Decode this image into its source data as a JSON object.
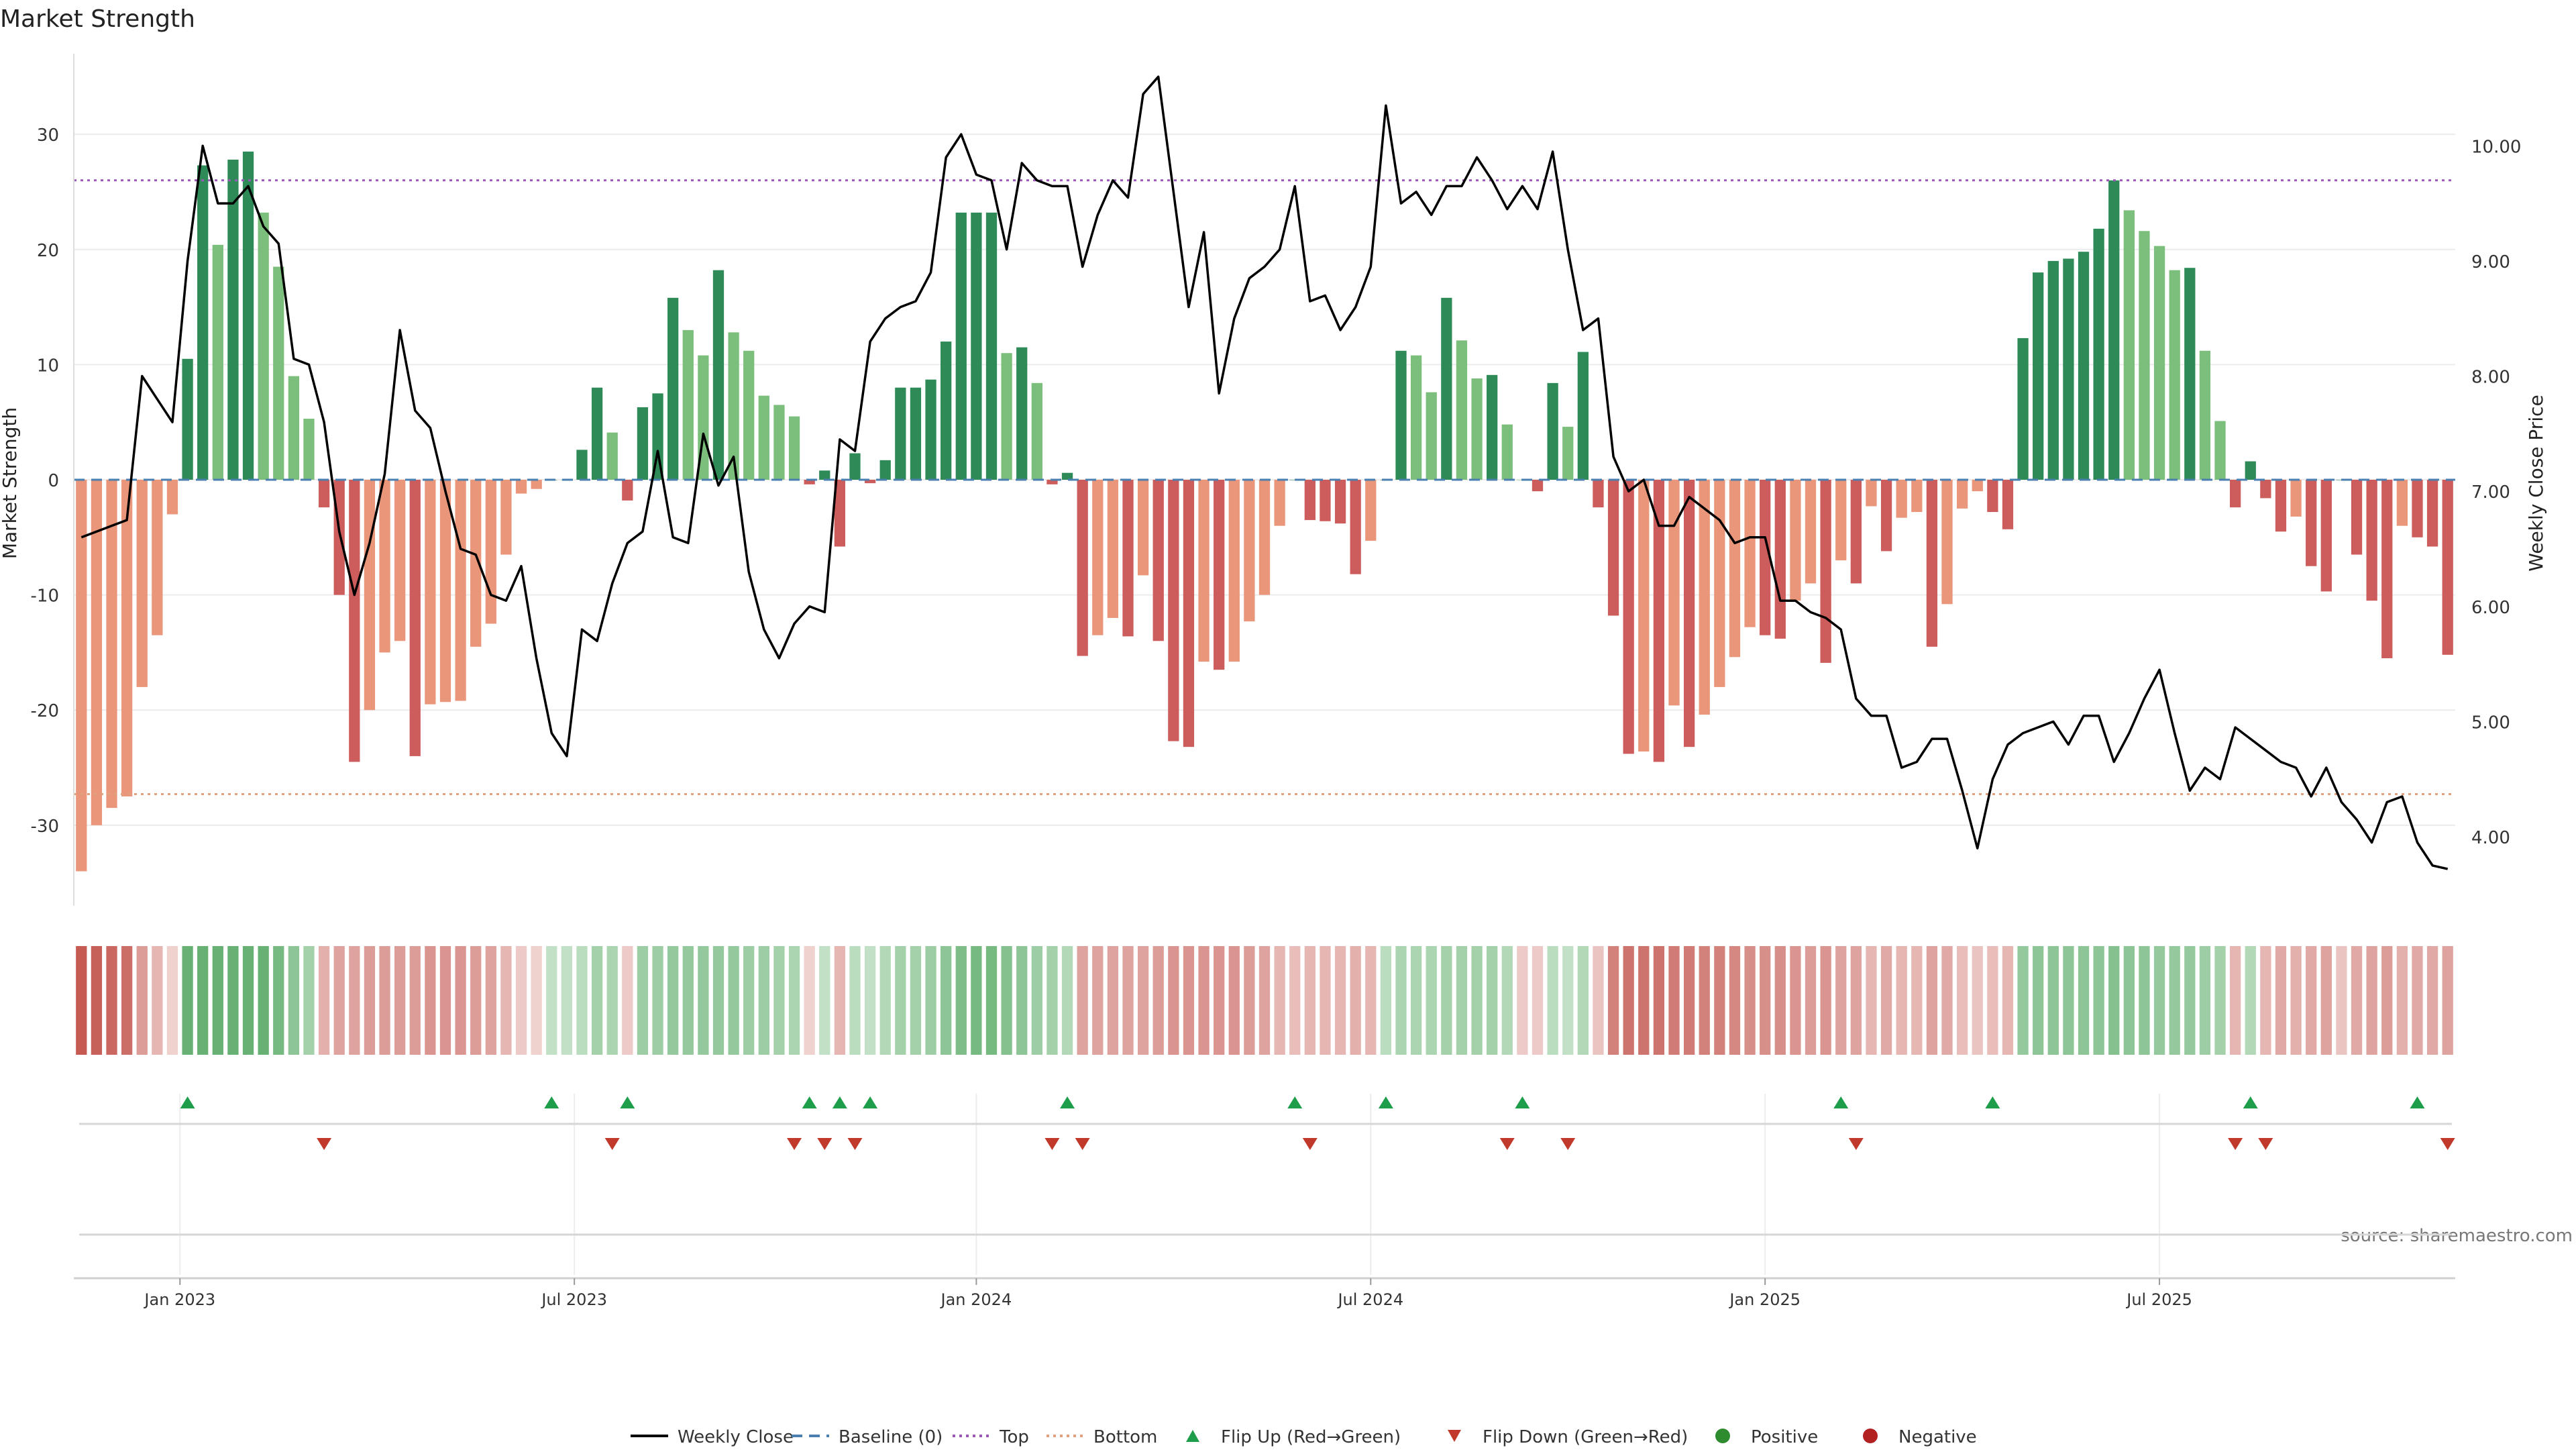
{
  "chart_data": {
    "type": "bar",
    "title": "Market Strength",
    "ylabel": "Market Strength",
    "y2label": "Weekly Close Price",
    "ylim": [
      -37,
      37
    ],
    "y2lim": [
      3.4,
      10.8
    ],
    "yticks": [
      -30,
      -20,
      -10,
      0,
      10,
      20,
      30
    ],
    "y2ticks": [
      "4.00",
      "5.00",
      "6.00",
      "7.00",
      "8.00",
      "9.00",
      "10.00"
    ],
    "y2tick_values": [
      4,
      5,
      6,
      7,
      8,
      9,
      10
    ],
    "xticks": [
      "Jan 2023",
      "Jul 2023",
      "Jan 2024",
      "Jul 2024",
      "Jan 2025",
      "Jul 2025"
    ],
    "xtick_weeks": [
      7,
      33,
      59.5,
      85.5,
      111.5,
      137.5
    ],
    "top_line": 26,
    "bottom_line": -27.3,
    "baseline": 0,
    "strength": [
      -34,
      -30,
      -28.5,
      -27.5,
      -18,
      -13.5,
      -3,
      10.5,
      27.3,
      20.4,
      27.8,
      28.5,
      23.2,
      18.5,
      9,
      5.3,
      -2.4,
      -10,
      -24.5,
      -20,
      -15,
      -14,
      -24,
      -19.5,
      -19.3,
      -19.2,
      -14.5,
      -12.5,
      -6.5,
      -1.2,
      -0.8,
      0,
      0,
      2.6,
      8,
      4.1,
      -1.8,
      6.3,
      7.5,
      15.8,
      13,
      10.8,
      18.2,
      12.8,
      11.2,
      7.3,
      6.5,
      5.5,
      -0.4,
      0.8,
      -5.8,
      2.3,
      -0.3,
      1.7,
      8,
      8,
      8.7,
      12,
      23.2,
      23.2,
      23.2,
      11,
      11.5,
      8.4,
      -0.4,
      0.6,
      -15.3,
      -13.5,
      -12,
      -13.6,
      -8.3,
      -14,
      -22.7,
      -23.2,
      -15.8,
      -16.5,
      -15.8,
      -12.3,
      -10,
      -4,
      0,
      -3.5,
      -3.6,
      -3.8,
      -8.2,
      -5.3,
      0,
      11.2,
      10.8,
      7.6,
      15.8,
      12.1,
      8.8,
      9.1,
      4.8,
      0,
      -1,
      8.4,
      4.6,
      11.1,
      -2.4,
      -11.8,
      -23.8,
      -23.6,
      -24.5,
      -19.6,
      -23.2,
      -20.4,
      -18,
      -15.4,
      -12.8,
      -13.5,
      -13.8,
      -10.5,
      -9,
      -15.9,
      -7,
      -9,
      -2.3,
      -6.2,
      -3.3,
      -2.8,
      -14.5,
      -10.8,
      -2.5,
      -1,
      -2.8,
      -4.3,
      12.3,
      18,
      19,
      19.2,
      19.8,
      21.8,
      26,
      23.4,
      21.6,
      20.3,
      18.2,
      18.4,
      11.2,
      5.1,
      -2.4,
      1.6,
      -1.6,
      -4.5,
      -3.2,
      -7.5,
      -9.7,
      0,
      -6.5,
      -10.5,
      -15.5,
      -4,
      -5,
      -5.8,
      -15.2
    ],
    "weekly_close": [
      6.6,
      6.65,
      6.7,
      6.75,
      8.0,
      7.8,
      7.6,
      9.0,
      10.0,
      9.5,
      9.5,
      9.65,
      9.3,
      9.15,
      8.15,
      8.1,
      7.6,
      6.65,
      6.1,
      6.55,
      7.15,
      8.4,
      7.7,
      7.55,
      7.0,
      6.5,
      6.45,
      6.1,
      6.05,
      6.35,
      5.55,
      4.9,
      4.7,
      5.8,
      5.7,
      6.2,
      6.55,
      6.65,
      7.35,
      6.6,
      6.55,
      7.5,
      7.05,
      7.3,
      6.3,
      5.8,
      5.55,
      5.85,
      6.0,
      5.95,
      7.45,
      7.35,
      8.3,
      8.5,
      8.6,
      8.65,
      8.9,
      9.9,
      10.1,
      9.75,
      9.7,
      9.1,
      9.85,
      9.7,
      9.65,
      9.65,
      8.95,
      9.4,
      9.7,
      9.55,
      10.45,
      10.6,
      9.6,
      8.6,
      9.25,
      7.85,
      8.5,
      8.85,
      8.95,
      9.1,
      9.65,
      8.65,
      8.7,
      8.4,
      8.6,
      8.95,
      10.35,
      9.5,
      9.6,
      9.4,
      9.65,
      9.65,
      9.9,
      9.7,
      9.45,
      9.65,
      9.45,
      9.95,
      9.1,
      8.4,
      8.5,
      7.3,
      7.0,
      7.1,
      6.7,
      6.7,
      6.95,
      6.85,
      6.75,
      6.55,
      6.6,
      6.6,
      6.05,
      6.05,
      5.95,
      5.9,
      5.8,
      5.2,
      5.05,
      5.05,
      4.6,
      4.65,
      4.85,
      4.85,
      4.4,
      3.9,
      4.5,
      4.8,
      4.9,
      4.95,
      5.0,
      4.8,
      5.05,
      5.05,
      4.65,
      4.9,
      5.2,
      5.45,
      4.9,
      4.4,
      4.6,
      4.5,
      4.95,
      4.85,
      4.75,
      4.65,
      4.6,
      4.35,
      4.6,
      4.3,
      4.15,
      3.95,
      4.3,
      4.35,
      3.95,
      3.75,
      3.72
    ],
    "heat_bands": [
      -1,
      -0.95,
      -0.9,
      -0.85,
      -0.5,
      -0.3,
      -0.1,
      0.85,
      0.85,
      0.85,
      0.85,
      0.85,
      0.85,
      0.75,
      0.6,
      0.45,
      -0.35,
      -0.45,
      -0.45,
      -0.5,
      -0.5,
      -0.5,
      -0.5,
      -0.55,
      -0.55,
      -0.55,
      -0.5,
      -0.45,
      -0.3,
      -0.15,
      -0.1,
      0.25,
      0.25,
      0.3,
      0.45,
      0.4,
      -0.15,
      0.5,
      0.5,
      0.55,
      0.55,
      0.55,
      0.55,
      0.55,
      0.5,
      0.5,
      0.45,
      0.4,
      -0.1,
      0.25,
      -0.3,
      0.3,
      0.25,
      0.35,
      0.45,
      0.45,
      0.5,
      0.6,
      0.7,
      0.75,
      0.75,
      0.65,
      0.6,
      0.5,
      0.45,
      0.35,
      -0.45,
      -0.45,
      -0.45,
      -0.45,
      -0.45,
      -0.5,
      -0.55,
      -0.55,
      -0.55,
      -0.55,
      -0.55,
      -0.5,
      -0.45,
      -0.3,
      -0.25,
      -0.3,
      -0.3,
      -0.3,
      -0.35,
      -0.3,
      0.3,
      0.4,
      0.4,
      0.4,
      0.45,
      0.45,
      0.45,
      0.45,
      0.35,
      -0.15,
      -0.15,
      0.3,
      0.25,
      0.35,
      -0.2,
      -0.7,
      -0.8,
      -0.8,
      -0.8,
      -0.75,
      -0.75,
      -0.7,
      -0.7,
      -0.65,
      -0.6,
      -0.6,
      -0.6,
      -0.55,
      -0.5,
      -0.55,
      -0.45,
      -0.45,
      -0.3,
      -0.4,
      -0.3,
      -0.3,
      -0.45,
      -0.4,
      -0.25,
      -0.2,
      -0.25,
      -0.3,
      0.55,
      0.6,
      0.6,
      0.6,
      0.6,
      0.6,
      0.65,
      0.6,
      0.6,
      0.55,
      0.55,
      0.55,
      0.5,
      0.45,
      -0.3,
      0.35,
      -0.3,
      -0.4,
      -0.35,
      -0.4,
      -0.45,
      -0.2,
      -0.4,
      -0.45,
      -0.5,
      -0.35,
      -0.4,
      -0.4,
      -0.45
    ],
    "flip_up_weeks": [
      7,
      31,
      36,
      48,
      50,
      52,
      65,
      80,
      86,
      95,
      116,
      126,
      143,
      154
    ],
    "flip_down_weeks": [
      16,
      35,
      47,
      49,
      51,
      64,
      66,
      81,
      94,
      98,
      117,
      142,
      144,
      156
    ],
    "source": "source: sharemaestro.com",
    "legend": [
      {
        "label": "Weekly Close",
        "kind": "line",
        "color": "#000000"
      },
      {
        "label": "Baseline (0)",
        "kind": "dash",
        "color": "#4a7fb0"
      },
      {
        "label": "Top",
        "kind": "dot",
        "color": "#9b59b6"
      },
      {
        "label": "Bottom",
        "kind": "dot",
        "color": "#e0a27e"
      },
      {
        "label": "Flip Up (Red→Green)",
        "kind": "triangle-up",
        "color": "#1e9e4a"
      },
      {
        "label": "Flip Down (Green→Red)",
        "kind": "triangle-down",
        "color": "#c0392b"
      },
      {
        "label": "Positive",
        "kind": "circle",
        "color": "#2e8b2e"
      },
      {
        "label": "Negative",
        "kind": "circle",
        "color": "#b22222"
      }
    ],
    "legend_placement": "bottom-center",
    "colors": {
      "pos_strong": "#2e8b57",
      "pos_light": "#7cbf7c",
      "neg_strong": "#cd5c5c",
      "neg_light": "#e9967a"
    }
  }
}
